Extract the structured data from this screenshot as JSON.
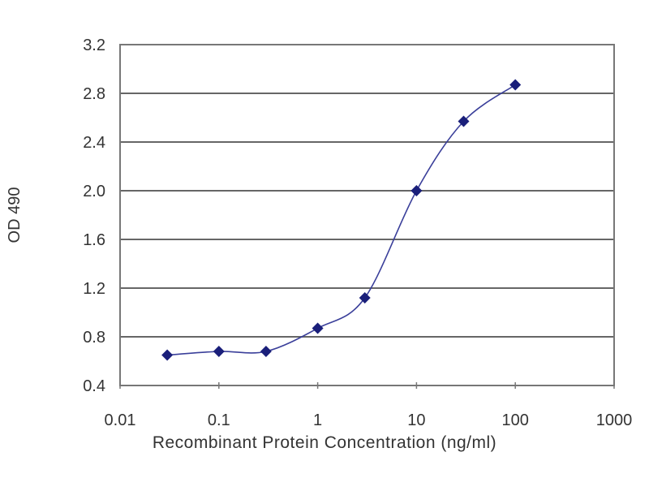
{
  "chart_data": {
    "type": "line",
    "title": "",
    "xlabel": "Recombinant Protein Concentration (ng/ml)",
    "ylabel": "OD 490",
    "xscale": "log",
    "xlim": [
      0.01,
      1000
    ],
    "ylim": [
      0.4,
      3.2
    ],
    "grid": "horizontal",
    "x_ticks": [
      "0.01",
      "0.1",
      "1",
      "10",
      "100",
      "1000"
    ],
    "y_ticks": [
      "0.4",
      "0.8",
      "1.2",
      "1.6",
      "2.0",
      "2.4",
      "2.8",
      "3.2"
    ],
    "series": [
      {
        "name": "OD 490",
        "color": "#1a1f7a",
        "x": [
          0.03,
          0.1,
          0.3,
          1,
          3,
          10,
          30,
          100
        ],
        "y": [
          0.65,
          0.68,
          0.68,
          0.87,
          1.12,
          2.0,
          2.57,
          2.87
        ]
      }
    ]
  }
}
